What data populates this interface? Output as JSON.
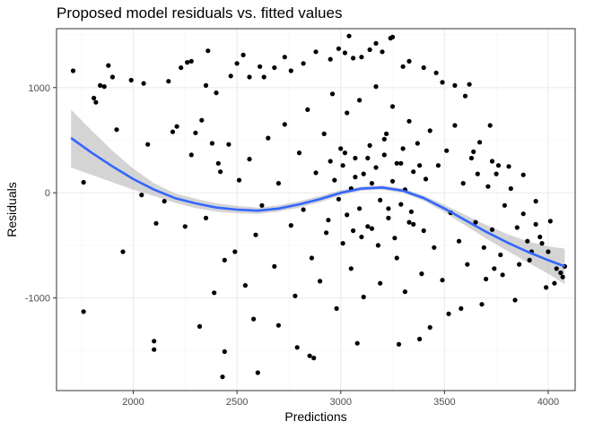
{
  "chart_data": {
    "type": "scatter",
    "title": "Proposed model residuals vs. fitted values",
    "xlabel": "Predictions",
    "ylabel": "Residuals",
    "xlim": [
      1630,
      4130
    ],
    "ylim": [
      -1880,
      1560
    ],
    "x_ticks": [
      2000,
      2500,
      3000,
      3500,
      4000
    ],
    "y_ticks": [
      -1000,
      0,
      1000
    ],
    "grid": true,
    "legend": "none",
    "colors": {
      "points": "#000000",
      "smooth_line": "#3366ff",
      "confidence_band": "#bdbdbd",
      "grid_major": "#ebebeb",
      "grid_minor": "#f5f5f5",
      "panel_border": "#333333"
    },
    "points": [
      [
        1710,
        1160
      ],
      [
        1760,
        100
      ],
      [
        1760,
        -1130
      ],
      [
        1810,
        900
      ],
      [
        1820,
        860
      ],
      [
        1840,
        1020
      ],
      [
        1860,
        1010
      ],
      [
        1880,
        1210
      ],
      [
        1900,
        1100
      ],
      [
        1920,
        600
      ],
      [
        1990,
        1070
      ],
      [
        2050,
        1040
      ],
      [
        2070,
        460
      ],
      [
        2100,
        -1410
      ],
      [
        2100,
        -1490
      ],
      [
        2110,
        -290
      ],
      [
        2170,
        1060
      ],
      [
        2190,
        580
      ],
      [
        2210,
        630
      ],
      [
        2230,
        1190
      ],
      [
        2260,
        1240
      ],
      [
        2280,
        1250
      ],
      [
        2300,
        570
      ],
      [
        2320,
        -1270
      ],
      [
        2330,
        690
      ],
      [
        2350,
        1020
      ],
      [
        2360,
        1350
      ],
      [
        2380,
        470
      ],
      [
        2400,
        950
      ],
      [
        2420,
        200
      ],
      [
        2430,
        -1750
      ],
      [
        2440,
        -1510
      ],
      [
        2470,
        1110
      ],
      [
        2500,
        1230
      ],
      [
        2530,
        1310
      ],
      [
        2560,
        1100
      ],
      [
        2580,
        -1200
      ],
      [
        2600,
        -1710
      ],
      [
        2610,
        1200
      ],
      [
        2630,
        1100
      ],
      [
        2680,
        1190
      ],
      [
        2700,
        -1260
      ],
      [
        2730,
        1290
      ],
      [
        2760,
        1160
      ],
      [
        2790,
        -1470
      ],
      [
        2820,
        1230
      ],
      [
        2850,
        -1550
      ],
      [
        2870,
        -1570
      ],
      [
        2880,
        1340
      ],
      [
        2950,
        1270
      ],
      [
        2990,
        1370
      ],
      [
        3020,
        1330
      ],
      [
        3040,
        1490
      ],
      [
        3060,
        1280
      ],
      [
        3080,
        -1430
      ],
      [
        3100,
        1290
      ],
      [
        3140,
        1360
      ],
      [
        3170,
        1420
      ],
      [
        3200,
        1340
      ],
      [
        3240,
        1470
      ],
      [
        3250,
        1480
      ],
      [
        3280,
        -1440
      ],
      [
        3300,
        1200
      ],
      [
        3330,
        1250
      ],
      [
        3380,
        -1390
      ],
      [
        3400,
        1190
      ],
      [
        3430,
        -1280
      ],
      [
        3460,
        1140
      ],
      [
        3490,
        1050
      ],
      [
        3520,
        -1150
      ],
      [
        3550,
        1020
      ],
      [
        3580,
        -1100
      ],
      [
        3600,
        920
      ],
      [
        3620,
        1030
      ],
      [
        3640,
        390
      ],
      [
        3660,
        180
      ],
      [
        3680,
        -1060
      ],
      [
        3700,
        -820
      ],
      [
        3720,
        640
      ],
      [
        3730,
        300
      ],
      [
        3740,
        -720
      ],
      [
        3760,
        260
      ],
      [
        3780,
        -780
      ],
      [
        3810,
        250
      ],
      [
        3840,
        -1020
      ],
      [
        3860,
        -680
      ],
      [
        3880,
        170
      ],
      [
        3900,
        -460
      ],
      [
        3920,
        -560
      ],
      [
        3940,
        -300
      ],
      [
        3960,
        -420
      ],
      [
        3990,
        -900
      ],
      [
        4010,
        -270
      ],
      [
        4030,
        -860
      ],
      [
        4060,
        -760
      ],
      [
        4070,
        -800
      ],
      [
        4080,
        -700
      ],
      [
        1950,
        -560
      ],
      [
        2040,
        -20
      ],
      [
        2150,
        -80
      ],
      [
        2250,
        -320
      ],
      [
        2280,
        360
      ],
      [
        2350,
        -240
      ],
      [
        2390,
        -950
      ],
      [
        2410,
        280
      ],
      [
        2440,
        -640
      ],
      [
        2460,
        460
      ],
      [
        2490,
        -560
      ],
      [
        2510,
        120
      ],
      [
        2540,
        -880
      ],
      [
        2560,
        320
      ],
      [
        2590,
        -400
      ],
      [
        2620,
        -120
      ],
      [
        2650,
        520
      ],
      [
        2680,
        -700
      ],
      [
        2700,
        90
      ],
      [
        2730,
        650
      ],
      [
        2760,
        -310
      ],
      [
        2780,
        -980
      ],
      [
        2800,
        380
      ],
      [
        2820,
        -160
      ],
      [
        2840,
        790
      ],
      [
        2860,
        -620
      ],
      [
        2880,
        190
      ],
      [
        2900,
        -840
      ],
      [
        2920,
        560
      ],
      [
        2940,
        -260
      ],
      [
        2960,
        940
      ],
      [
        2980,
        -1100
      ],
      [
        3000,
        420
      ],
      [
        3010,
        -480
      ],
      [
        3030,
        760
      ],
      [
        3050,
        -720
      ],
      [
        3070,
        150
      ],
      [
        3090,
        880
      ],
      [
        3110,
        -990
      ],
      [
        3130,
        330
      ],
      [
        3150,
        -340
      ],
      [
        3170,
        1010
      ],
      [
        3190,
        -860
      ],
      [
        3210,
        510
      ],
      [
        3230,
        -150
      ],
      [
        3250,
        820
      ],
      [
        3270,
        -620
      ],
      [
        3290,
        280
      ],
      [
        3310,
        -940
      ],
      [
        3330,
        680
      ],
      [
        3350,
        -300
      ],
      [
        3370,
        470
      ],
      [
        3390,
        -770
      ],
      [
        3410,
        130
      ],
      [
        3430,
        590
      ],
      [
        3450,
        -520
      ],
      [
        3470,
        260
      ],
      [
        3490,
        -830
      ],
      [
        3510,
        400
      ],
      [
        3530,
        -190
      ],
      [
        3550,
        640
      ],
      [
        3570,
        -460
      ],
      [
        3590,
        90
      ],
      [
        3610,
        -680
      ],
      [
        3630,
        330
      ],
      [
        3650,
        -280
      ],
      [
        3670,
        480
      ],
      [
        3690,
        -520
      ],
      [
        3710,
        60
      ],
      [
        3730,
        -350
      ],
      [
        3750,
        180
      ],
      [
        3770,
        -590
      ],
      [
        3790,
        -120
      ],
      [
        3820,
        40
      ],
      [
        3850,
        -330
      ],
      [
        3880,
        -200
      ],
      [
        3910,
        -640
      ],
      [
        3940,
        -80
      ],
      [
        3970,
        -480
      ],
      [
        4000,
        -560
      ],
      [
        4040,
        -720
      ],
      [
        2970,
        120
      ],
      [
        2990,
        -60
      ],
      [
        3010,
        260
      ],
      [
        3030,
        -210
      ],
      [
        3050,
        40
      ],
      [
        3070,
        330
      ],
      [
        3090,
        -150
      ],
      [
        3110,
        180
      ],
      [
        3130,
        -320
      ],
      [
        3150,
        90
      ],
      [
        3170,
        240
      ],
      [
        3190,
        -70
      ],
      [
        3210,
        360
      ],
      [
        3230,
        -240
      ],
      [
        3250,
        110
      ],
      [
        3270,
        280
      ],
      [
        3290,
        -110
      ],
      [
        3310,
        30
      ],
      [
        3330,
        -280
      ],
      [
        3350,
        200
      ],
      [
        3100,
        -420
      ],
      [
        3140,
        450
      ],
      [
        3180,
        -500
      ],
      [
        3220,
        560
      ],
      [
        3060,
        -360
      ],
      [
        3020,
        380
      ],
      [
        3260,
        -430
      ],
      [
        3300,
        420
      ],
      [
        3340,
        -180
      ],
      [
        2950,
        300
      ],
      [
        2930,
        -380
      ],
      [
        3380,
        260
      ],
      [
        3400,
        -360
      ]
    ],
    "smooth_line": [
      [
        1700,
        520
      ],
      [
        1800,
        380
      ],
      [
        1900,
        250
      ],
      [
        2000,
        130
      ],
      [
        2100,
        30
      ],
      [
        2200,
        -50
      ],
      [
        2300,
        -100
      ],
      [
        2400,
        -140
      ],
      [
        2500,
        -160
      ],
      [
        2600,
        -170
      ],
      [
        2700,
        -150
      ],
      [
        2800,
        -110
      ],
      [
        2900,
        -60
      ],
      [
        3000,
        0
      ],
      [
        3100,
        40
      ],
      [
        3200,
        50
      ],
      [
        3300,
        20
      ],
      [
        3400,
        -50
      ],
      [
        3500,
        -150
      ],
      [
        3600,
        -260
      ],
      [
        3700,
        -370
      ],
      [
        3800,
        -470
      ],
      [
        3900,
        -560
      ],
      [
        4000,
        -640
      ],
      [
        4080,
        -700
      ]
    ],
    "confidence_band": [
      [
        1700,
        240,
        790
      ],
      [
        1800,
        170,
        590
      ],
      [
        1900,
        100,
        400
      ],
      [
        2000,
        30,
        230
      ],
      [
        2100,
        -30,
        90
      ],
      [
        2200,
        -95,
        -5
      ],
      [
        2300,
        -145,
        -55
      ],
      [
        2400,
        -180,
        -100
      ],
      [
        2500,
        -195,
        -125
      ],
      [
        2600,
        -200,
        -140
      ],
      [
        2700,
        -180,
        -120
      ],
      [
        2800,
        -140,
        -80
      ],
      [
        2900,
        -90,
        -30
      ],
      [
        3000,
        -25,
        25
      ],
      [
        3100,
        20,
        60
      ],
      [
        3200,
        30,
        70
      ],
      [
        3300,
        0,
        40
      ],
      [
        3400,
        -75,
        -25
      ],
      [
        3500,
        -185,
        -115
      ],
      [
        3600,
        -310,
        -210
      ],
      [
        3700,
        -435,
        -305
      ],
      [
        3800,
        -550,
        -390
      ],
      [
        3900,
        -660,
        -460
      ],
      [
        4000,
        -770,
        -510
      ],
      [
        4080,
        -870,
        -530
      ]
    ]
  }
}
